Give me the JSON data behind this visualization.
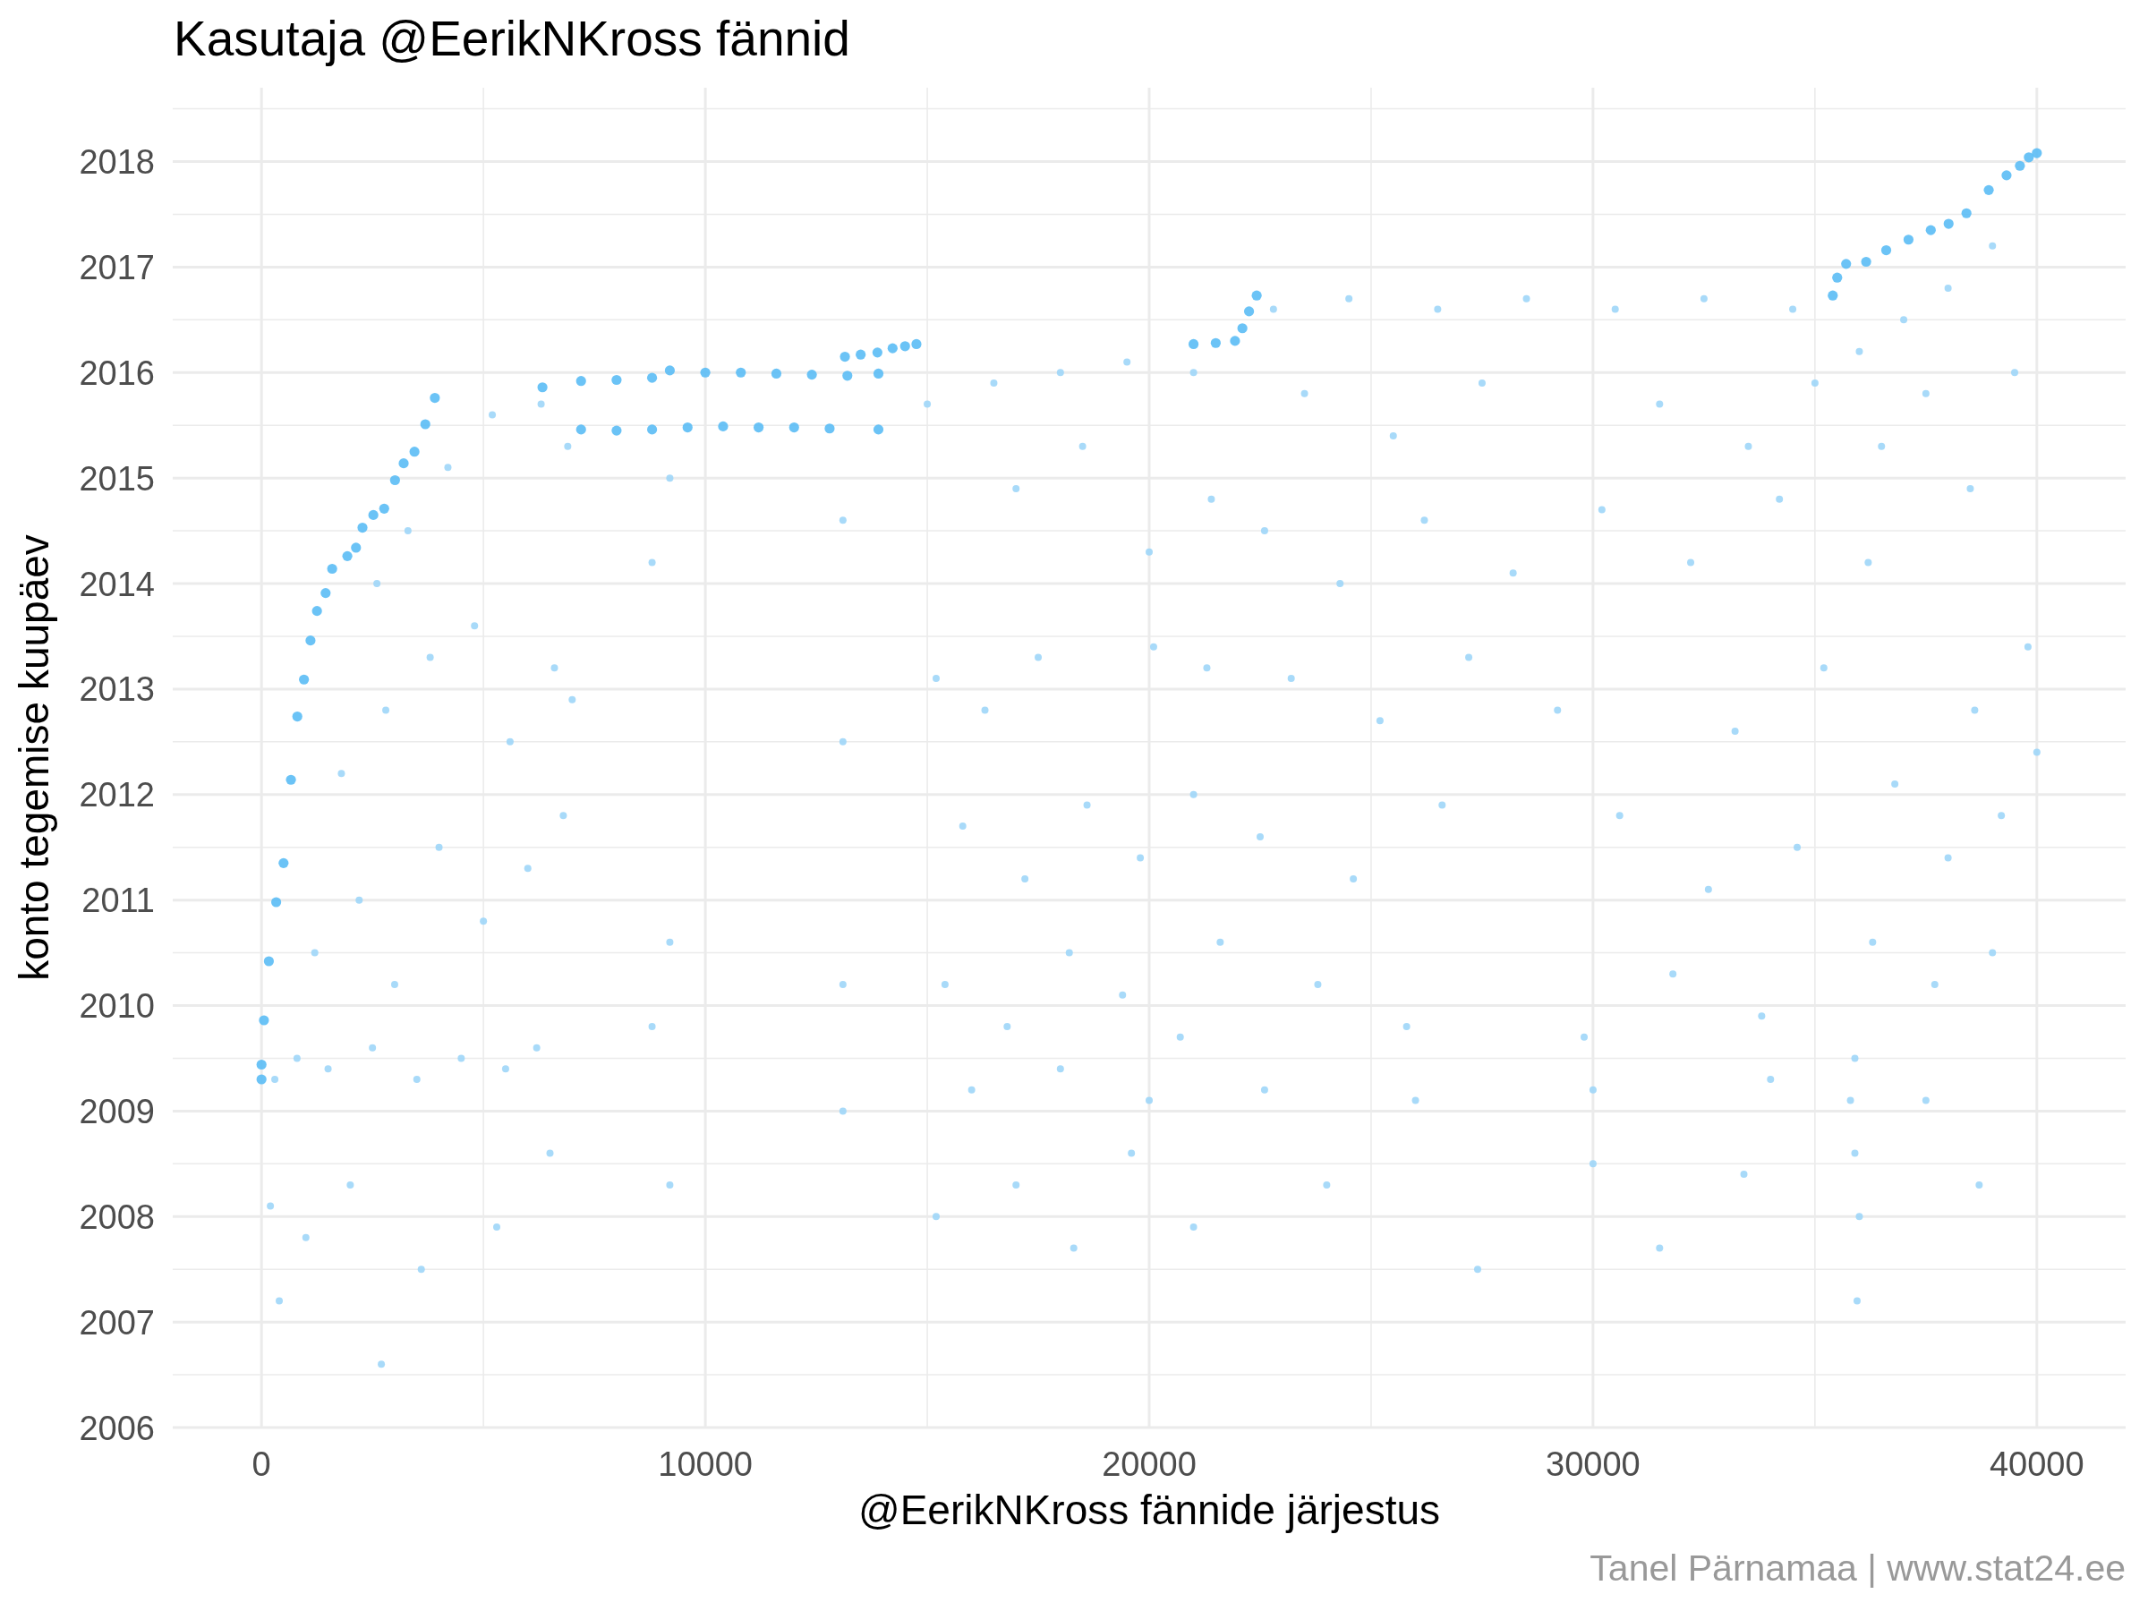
{
  "chart_data": {
    "type": "scatter",
    "title": "Kasutaja @EerikNKross fännid",
    "xlabel": "@EerikNKross fännide järjestus",
    "ylabel": "konto tegemise kuupäev",
    "annotations": [
      "Tanel Pärnamaa | www.stat24.ee"
    ],
    "xlim": [
      -2000,
      42000
    ],
    "ylim": [
      2006,
      2018.7
    ],
    "xticks": [
      0,
      {
        "value": 5000,
        "label": null
      },
      10000,
      {
        "value": 15000,
        "label": null
      },
      20000,
      {
        "value": 25000,
        "label": null
      },
      30000,
      {
        "value": 35000,
        "label": null
      },
      40000
    ],
    "yticks": [
      2006,
      {
        "value": 2006.5,
        "label": null
      },
      2007,
      {
        "value": 2007.5,
        "label": null
      },
      2008,
      {
        "value": 2008.5,
        "label": null
      },
      2009,
      {
        "value": 2009.5,
        "label": null
      },
      2010,
      {
        "value": 2010.5,
        "label": null
      },
      2011,
      {
        "value": 2011.5,
        "label": null
      },
      2012,
      {
        "value": 2012.5,
        "label": null
      },
      2013,
      {
        "value": 2013.5,
        "label": null
      },
      2014,
      {
        "value": 2014.5,
        "label": null
      },
      2015,
      {
        "value": 2015.5,
        "label": null
      },
      2016,
      {
        "value": 2016.5,
        "label": null
      },
      2017,
      {
        "value": 2017.5,
        "label": null
      },
      2018,
      {
        "value": 2018.5,
        "label": null
      }
    ],
    "grid": true,
    "marker": "circle",
    "series": [
      {
        "color": "#9fd6f8",
        "x": [
          300,
          800,
          1500,
          2500,
          3500,
          4500,
          5500,
          6200,
          1200,
          2200,
          3000,
          4000,
          5000,
          6000,
          6800,
          1800,
          2800,
          3800,
          4800,
          5600,
          6600,
          7000,
          2600,
          3300,
          4200,
          5200,
          6300,
          6900,
          200,
          1000,
          2000,
          2700,
          3600,
          5300,
          6500,
          400,
          8800,
          8800,
          9200,
          9200,
          9200,
          13100,
          13100,
          13100,
          13100,
          15000,
          16500,
          18000,
          19500,
          21000,
          17000,
          18500,
          20000,
          21400,
          15200,
          16300,
          17500,
          20100,
          21300,
          15800,
          17200,
          18600,
          19800,
          21000,
          15400,
          16800,
          18200,
          19400,
          20700,
          21600,
          16000,
          18000,
          20000,
          15200,
          17000,
          18300,
          19600,
          21000,
          22800,
          24500,
          26500,
          28500,
          30500,
          32500,
          34500,
          23500,
          25500,
          27500,
          31500,
          33500,
          35000,
          22600,
          24300,
          26200,
          28200,
          30200,
          32200,
          34200,
          23200,
          25200,
          27200,
          29200,
          33200,
          35200,
          22500,
          24600,
          26600,
          30600,
          32600,
          34600,
          23800,
          25800,
          29800,
          31800,
          33800,
          22600,
          26000,
          30000,
          34000,
          24000,
          27400,
          30000,
          31500,
          33400,
          36000,
          37000,
          38000,
          39000,
          36500,
          37500,
          38500,
          39500,
          36200,
          38600,
          39800,
          36800,
          38000,
          39200,
          36300,
          37700,
          39000,
          35900,
          35800,
          35900,
          36000,
          35950,
          37500,
          38700,
          40000
        ],
        "values": [
          2009.3,
          2009.5,
          2009.4,
          2009.6,
          2009.3,
          2009.5,
          2009.4,
          2009.6,
          2010.5,
          2011.0,
          2010.2,
          2011.5,
          2010.8,
          2011.3,
          2011.8,
          2012.2,
          2012.8,
          2013.3,
          2013.6,
          2012.5,
          2013.2,
          2012.9,
          2014.0,
          2014.5,
          2015.1,
          2015.6,
          2015.7,
          2015.3,
          2008.1,
          2007.8,
          2008.3,
          2006.6,
          2007.5,
          2007.9,
          2008.6,
          2007.2,
          2014.2,
          2009.8,
          2015.0,
          2010.6,
          2008.3,
          2014.6,
          2012.5,
          2010.2,
          2009.0,
          2015.7,
          2015.9,
          2016.0,
          2016.1,
          2016.0,
          2014.9,
          2015.3,
          2014.3,
          2014.8,
          2013.1,
          2012.8,
          2013.3,
          2013.4,
          2013.2,
          2011.7,
          2011.2,
          2011.9,
          2011.4,
          2012.0,
          2010.2,
          2009.8,
          2010.5,
          2010.1,
          2009.7,
          2010.6,
          2009.2,
          2009.4,
          2009.1,
          2008.0,
          2008.3,
          2007.7,
          2008.6,
          2007.9,
          2016.6,
          2016.7,
          2016.6,
          2016.7,
          2016.6,
          2016.7,
          2016.6,
          2015.8,
          2015.4,
          2015.9,
          2015.7,
          2015.3,
          2015.9,
          2014.5,
          2014.0,
          2014.6,
          2014.1,
          2014.7,
          2014.2,
          2014.8,
          2013.1,
          2012.7,
          2013.3,
          2012.8,
          2012.6,
          2013.2,
          2011.6,
          2011.2,
          2011.9,
          2011.8,
          2011.1,
          2011.5,
          2010.2,
          2009.8,
          2009.7,
          2010.3,
          2009.9,
          2009.2,
          2009.1,
          2009.2,
          2009.3,
          2008.3,
          2007.5,
          2008.5,
          2007.7,
          2008.4,
          2016.2,
          2016.5,
          2016.8,
          2017.2,
          2015.3,
          2015.8,
          2014.9,
          2016.0,
          2014.2,
          2012.8,
          2013.4,
          2012.1,
          2011.4,
          2011.8,
          2010.6,
          2010.2,
          2010.5,
          2009.5,
          2009.1,
          2008.6,
          2008.0,
          2007.2,
          2009.1,
          2008.3,
          2012.4
        ]
      },
      {
        "color": "#5bbcf5",
        "x": [
          0,
          0,
          55,
          166,
          331,
          497,
          663,
          807,
          957,
          1104,
          1250,
          1445,
          1592,
          1934,
          2129,
          2275,
          2520,
          2764,
          3008,
          3203,
          3447,
          3691,
          3906,
          6330,
          7200,
          8000,
          8800,
          9200,
          10000,
          10800,
          11600,
          12400,
          13200,
          13900,
          13145,
          13500,
          13877,
          14219,
          14500,
          14756,
          7200,
          8000,
          8800,
          9600,
          10400,
          11200,
          12000,
          12800,
          13900,
          21000,
          21500,
          21934,
          22100,
          22250,
          22422,
          35402,
          35502,
          35703,
          36154,
          36606,
          37108,
          37610,
          38012,
          38414,
          38916,
          39317,
          39618,
          39819,
          40000
        ],
        "values": [
          2009.3,
          2009.44,
          2009.86,
          2010.42,
          2010.98,
          2011.35,
          2012.14,
          2012.74,
          2013.09,
          2013.46,
          2013.74,
          2013.91,
          2014.14,
          2014.26,
          2014.34,
          2014.53,
          2014.65,
          2014.71,
          2014.98,
          2015.14,
          2015.25,
          2015.51,
          2015.76,
          2015.86,
          2015.92,
          2015.93,
          2015.95,
          2016.02,
          2016.0,
          2016.0,
          2015.99,
          2015.98,
          2015.97,
          2015.99,
          2016.15,
          2016.17,
          2016.19,
          2016.23,
          2016.25,
          2016.27,
          2015.46,
          2015.45,
          2015.46,
          2015.48,
          2015.49,
          2015.48,
          2015.48,
          2015.47,
          2015.46,
          2016.27,
          2016.28,
          2016.3,
          2016.42,
          2016.58,
          2016.73,
          2016.73,
          2016.9,
          2017.03,
          2017.05,
          2017.16,
          2017.26,
          2017.35,
          2017.41,
          2017.51,
          2017.73,
          2017.87,
          2017.96,
          2018.04,
          2018.08
        ]
      }
    ]
  }
}
